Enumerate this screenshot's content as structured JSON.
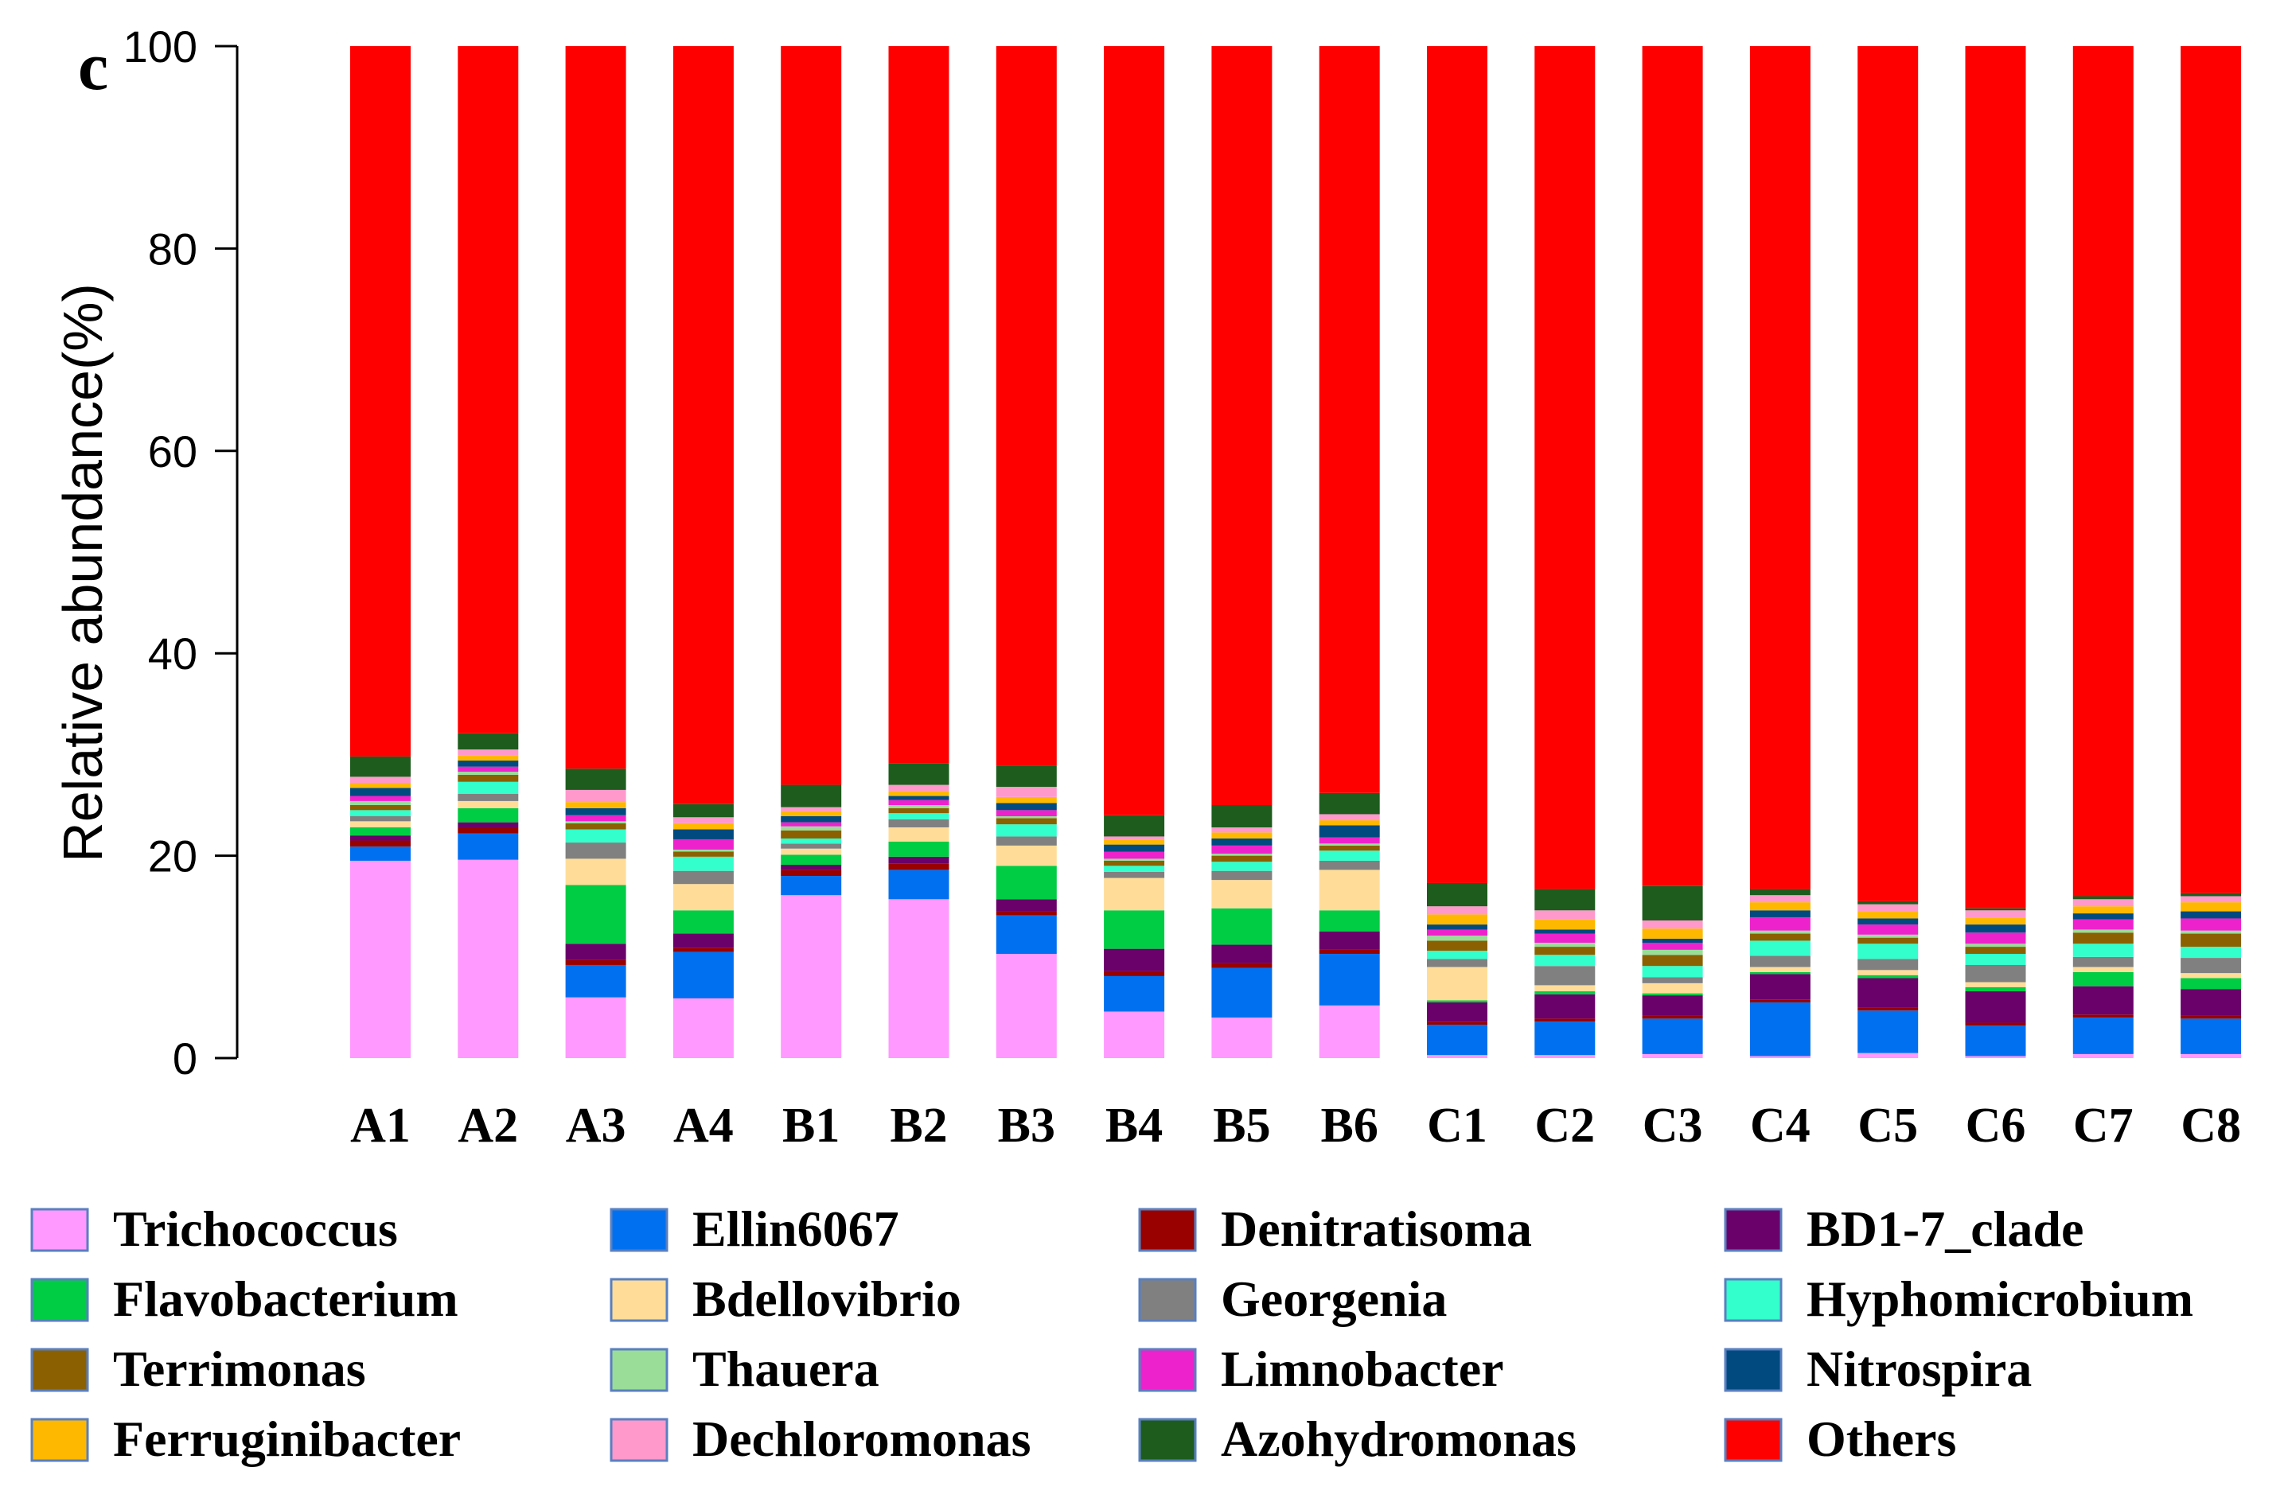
{
  "chart_data": {
    "type": "bar",
    "stacked": true,
    "panel_label": "c",
    "ylabel": "Relative abundance(%)",
    "xlabel": "",
    "ylim": [
      0,
      100
    ],
    "yticks": [
      0,
      20,
      40,
      60,
      80,
      100
    ],
    "categories": [
      "A1",
      "A2",
      "A3",
      "A4",
      "B1",
      "B2",
      "B3",
      "B4",
      "B5",
      "B6",
      "C1",
      "C2",
      "C3",
      "C4",
      "C5",
      "C6",
      "C7",
      "C8"
    ],
    "series": [
      {
        "name": "Trichococcus",
        "color": "#FF99FF",
        "values": [
          19.5,
          19.6,
          6.0,
          5.9,
          16.1,
          15.7,
          10.3,
          4.6,
          4.0,
          5.2,
          0.3,
          0.3,
          0.4,
          0.2,
          0.5,
          0.2,
          0.4,
          0.4
        ]
      },
      {
        "name": "Ellin6067",
        "color": "#0070F0",
        "values": [
          1.4,
          2.6,
          3.2,
          4.6,
          1.9,
          2.9,
          3.8,
          3.5,
          4.9,
          5.1,
          3.0,
          3.3,
          3.5,
          5.3,
          4.2,
          3.0,
          3.6,
          3.5
        ]
      },
      {
        "name": "Denitratisoma",
        "color": "#990000",
        "values": [
          0.6,
          0.6,
          0.5,
          0.4,
          0.6,
          0.6,
          0.4,
          0.5,
          0.5,
          0.4,
          0.3,
          0.3,
          0.3,
          0.3,
          0.3,
          0.3,
          0.3,
          0.3
        ]
      },
      {
        "name": "BD1-7_clade",
        "color": "#6A006A",
        "values": [
          0.5,
          0.5,
          1.6,
          1.4,
          0.5,
          0.7,
          1.2,
          2.2,
          1.8,
          1.8,
          1.9,
          2.4,
          2.0,
          2.5,
          2.9,
          3.1,
          2.8,
          2.6
        ]
      },
      {
        "name": "Flavobacterium",
        "color": "#00CC44",
        "values": [
          0.8,
          1.4,
          5.8,
          2.3,
          1.0,
          1.5,
          3.3,
          3.8,
          3.6,
          2.1,
          0.2,
          0.3,
          0.2,
          0.2,
          0.3,
          0.4,
          1.4,
          1.1
        ]
      },
      {
        "name": "Bdellovibrio",
        "color": "#FFDD99",
        "values": [
          0.6,
          0.7,
          2.6,
          2.6,
          0.6,
          1.4,
          2.0,
          3.2,
          2.8,
          4.0,
          3.3,
          0.6,
          1.0,
          0.5,
          0.5,
          0.5,
          0.5,
          0.5
        ]
      },
      {
        "name": "Georgenia",
        "color": "#808080",
        "values": [
          0.5,
          0.7,
          1.6,
          1.3,
          0.5,
          0.8,
          0.9,
          0.6,
          0.9,
          0.9,
          0.8,
          1.9,
          0.6,
          1.1,
          1.1,
          1.7,
          1.0,
          1.5
        ]
      },
      {
        "name": "Hyphomicrobium",
        "color": "#33FFCC",
        "values": [
          0.6,
          1.2,
          1.3,
          1.4,
          0.5,
          0.6,
          1.2,
          0.6,
          0.9,
          1.0,
          0.8,
          1.1,
          1.1,
          1.5,
          1.5,
          1.1,
          1.3,
          1.1
        ]
      },
      {
        "name": "Terrimonas",
        "color": "#8B6000",
        "values": [
          0.5,
          0.7,
          0.6,
          0.5,
          0.8,
          0.5,
          0.6,
          0.5,
          0.6,
          0.5,
          1.0,
          0.8,
          1.1,
          0.7,
          0.6,
          0.7,
          1.1,
          1.3
        ]
      },
      {
        "name": "Thauera",
        "color": "#99DD99",
        "values": [
          0.4,
          0.3,
          0.2,
          0.2,
          0.4,
          0.3,
          0.2,
          0.2,
          0.2,
          0.2,
          0.5,
          0.4,
          0.5,
          0.3,
          0.3,
          0.3,
          0.3,
          0.3
        ]
      },
      {
        "name": "Limnobacter",
        "color": "#EE22CC",
        "values": [
          0.5,
          0.5,
          0.6,
          1.0,
          0.4,
          0.5,
          0.6,
          0.7,
          0.8,
          0.6,
          0.6,
          0.9,
          0.7,
          1.3,
          1.0,
          1.1,
          1.0,
          1.2
        ]
      },
      {
        "name": "Nitrospira",
        "color": "#004A80",
        "values": [
          0.8,
          0.6,
          0.7,
          1.0,
          0.6,
          0.4,
          0.7,
          0.7,
          0.7,
          1.2,
          0.5,
          0.4,
          0.4,
          0.7,
          0.6,
          0.8,
          0.6,
          0.7
        ]
      },
      {
        "name": "Ferruginibacter",
        "color": "#FFB800",
        "values": [
          0.5,
          0.5,
          0.6,
          0.6,
          0.5,
          0.5,
          0.6,
          0.5,
          0.6,
          0.5,
          1.0,
          1.0,
          1.0,
          0.8,
          0.7,
          0.7,
          0.7,
          0.9
        ]
      },
      {
        "name": "Dechloromonas",
        "color": "#FF99CC",
        "values": [
          0.6,
          0.6,
          1.2,
          0.6,
          0.4,
          0.6,
          1.0,
          0.3,
          0.5,
          0.6,
          0.8,
          0.9,
          0.8,
          0.7,
          0.7,
          0.7,
          0.7,
          0.6
        ]
      },
      {
        "name": "Azohydromonas",
        "color": "#1D5C1D",
        "values": [
          2.0,
          1.6,
          2.1,
          1.3,
          2.2,
          2.1,
          2.1,
          2.1,
          2.2,
          2.1,
          2.3,
          2.1,
          3.4,
          0.6,
          0.3,
          0.2,
          0.3,
          0.3
        ]
      },
      {
        "name": "Others",
        "color": "#FF0000",
        "values": [
          69.8,
          63.5,
          69.4,
          71.5,
          71.9,
          67.4,
          69.5,
          73.9,
          72.5,
          71.3,
          81.0,
          80.0,
          80.0,
          79.5,
          80.5,
          82.0,
          80.8,
          80.7
        ]
      }
    ],
    "legend": {
      "placement": "bottom",
      "columns": [
        [
          "Trichococcus",
          "Flavobacterium",
          "Terrimonas",
          "Ferruginibacter"
        ],
        [
          "Ellin6067",
          "Bdellovibrio",
          "Thauera",
          "Dechloromonas"
        ],
        [
          "Denitratisoma",
          "Georgenia",
          "Limnobacter",
          "Azohydromonas"
        ],
        [
          "BD1-7_clade",
          "Hyphomicrobium",
          "Nitrospira",
          "Others"
        ]
      ]
    }
  }
}
